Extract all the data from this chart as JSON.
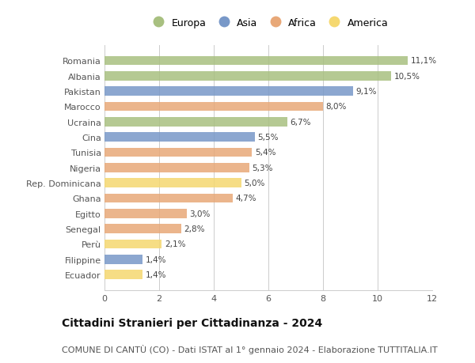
{
  "categories": [
    "Romania",
    "Albania",
    "Pakistan",
    "Marocco",
    "Ucraina",
    "Cina",
    "Tunisia",
    "Nigeria",
    "Rep. Dominicana",
    "Ghana",
    "Egitto",
    "Senegal",
    "Perù",
    "Filippine",
    "Ecuador"
  ],
  "values": [
    11.1,
    10.5,
    9.1,
    8.0,
    6.7,
    5.5,
    5.4,
    5.3,
    5.0,
    4.7,
    3.0,
    2.8,
    2.1,
    1.4,
    1.4
  ],
  "labels": [
    "11,1%",
    "10,5%",
    "9,1%",
    "8,0%",
    "6,7%",
    "5,5%",
    "5,4%",
    "5,3%",
    "5,0%",
    "4,7%",
    "3,0%",
    "2,8%",
    "2,1%",
    "1,4%",
    "1,4%"
  ],
  "continent": [
    "Europa",
    "Europa",
    "Asia",
    "Africa",
    "Europa",
    "Asia",
    "Africa",
    "Africa",
    "America",
    "Africa",
    "Africa",
    "Africa",
    "America",
    "Asia",
    "America"
  ],
  "colors": {
    "Europa": "#a8c080",
    "Asia": "#7898c8",
    "Africa": "#e8a878",
    "America": "#f5d870"
  },
  "legend_order": [
    "Europa",
    "Asia",
    "Africa",
    "America"
  ],
  "title": "Cittadini Stranieri per Cittadinanza - 2024",
  "subtitle": "COMUNE DI CANTÙ (CO) - Dati ISTAT al 1° gennaio 2024 - Elaborazione TUTTITALIA.IT",
  "xlim": [
    0,
    12
  ],
  "xticks": [
    0,
    2,
    4,
    6,
    8,
    10,
    12
  ],
  "bg_color": "#ffffff",
  "grid_color": "#cccccc",
  "title_fontsize": 10,
  "subtitle_fontsize": 8,
  "bar_height": 0.6
}
